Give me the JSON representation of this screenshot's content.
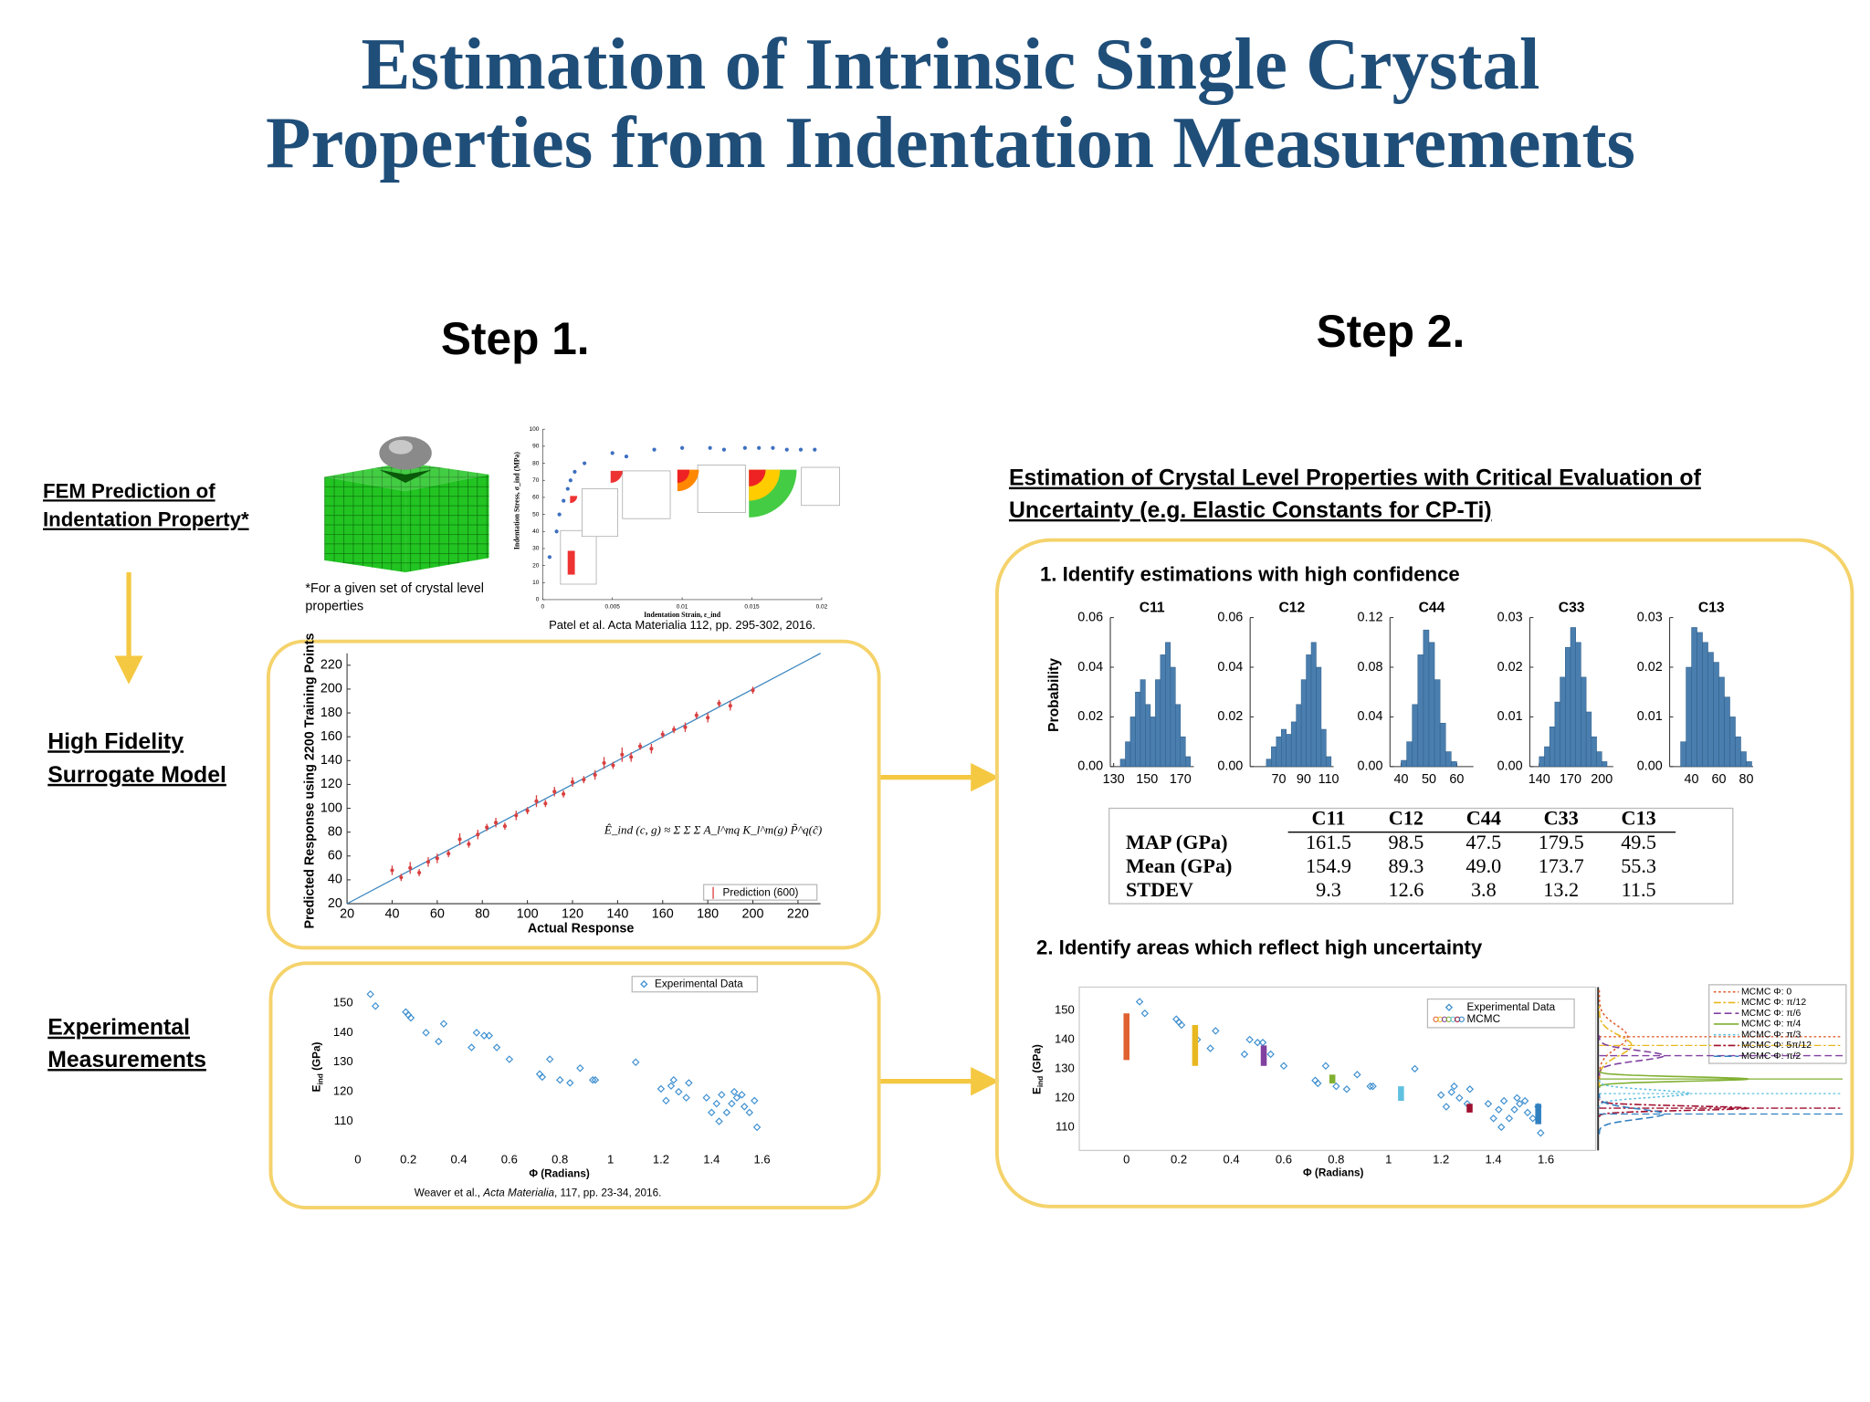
{
  "title": [
    "Estimation of Intrinsic Single Crystal",
    "Properties from Indentation Measurements"
  ],
  "step1": {
    "heading": "Step 1.",
    "fem_label": [
      "FEM  Prediction of",
      "Indentation Property*"
    ],
    "surrogate_label": [
      "High Fidelity",
      "Surrogate Model"
    ],
    "exp_label": [
      "Experimental",
      "Measurements"
    ],
    "fem_note": [
      "*For a given set of crystal level",
      "properties"
    ]
  },
  "step2": {
    "heading": "Step 2.",
    "subtitle": [
      "Estimation of Crystal Level Properties with Critical Evaluation of",
      "Uncertainty (e.g. Elastic Constants for CP-Ti)"
    ],
    "part1": "1. Identify estimations with high confidence",
    "part2": "2. Identify areas which reflect high uncertainty"
  },
  "charts": {
    "fem": {
      "type": "scatter",
      "x_label": "Indentation Strain, ε_ind",
      "y_label": "Indentation Stress, σ_ind (MPa)",
      "caption": "Patel et al. Acta Materialia 112, pp. 295-302, 2016.",
      "color": "#3d6fc0",
      "xlim": [
        0,
        0.02
      ],
      "xticks": [
        0,
        0.005,
        0.01,
        0.015,
        0.02
      ],
      "ylim": [
        0,
        100
      ],
      "yticks": [
        0,
        10,
        20,
        30,
        40,
        50,
        60,
        70,
        80,
        90,
        100
      ],
      "x": [
        0.0005,
        0.001,
        0.0012,
        0.0015,
        0.0018,
        0.002,
        0.0023,
        0.003,
        0.005,
        0.006,
        0.008,
        0.01,
        0.012,
        0.013,
        0.0145,
        0.0155,
        0.0165,
        0.0175,
        0.0185,
        0.0195
      ],
      "values": [
        25,
        40,
        50,
        58,
        65,
        70,
        75,
        80,
        86,
        84,
        88,
        89,
        89,
        88,
        89,
        89,
        89,
        88,
        88,
        88
      ]
    },
    "surrogate": {
      "type": "scatter",
      "x_label": "Actual Response",
      "y_label": "Predicted Response using 2200 Training Points",
      "equation": "Ê_ind (c, g) ≈ Σ Σ Σ A_l^mq K_l^m(g) P̃^q(c̃)",
      "legend": "Prediction (600)",
      "color": "#d94040",
      "line_color": "#3d87c0",
      "xlim": [
        20,
        230
      ],
      "xticks": [
        20,
        40,
        60,
        80,
        100,
        120,
        140,
        160,
        180,
        200,
        220
      ],
      "ylim": [
        20,
        230
      ],
      "yticks": [
        20,
        40,
        60,
        80,
        100,
        120,
        140,
        160,
        180,
        200,
        220
      ],
      "x": [
        40,
        44,
        48,
        52,
        56,
        60,
        65,
        70,
        74,
        78,
        82,
        86,
        90,
        95,
        100,
        104,
        108,
        112,
        116,
        120,
        125,
        130,
        134,
        138,
        142,
        146,
        150,
        155,
        160,
        165,
        170,
        175,
        180,
        185,
        190,
        200
      ],
      "values": [
        48,
        42,
        50,
        46,
        55,
        58,
        62,
        74,
        70,
        78,
        84,
        88,
        85,
        94,
        98,
        106,
        104,
        114,
        112,
        122,
        124,
        128,
        138,
        136,
        145,
        143,
        152,
        150,
        162,
        166,
        168,
        178,
        176,
        188,
        186,
        199
      ],
      "errors": [
        4,
        3,
        5,
        3,
        4,
        4,
        3,
        5,
        3,
        4,
        3,
        4,
        3,
        4,
        3,
        5,
        3,
        4,
        3,
        4,
        3,
        4,
        5,
        3,
        6,
        4,
        3,
        4,
        3,
        3,
        4,
        3,
        4,
        3,
        4,
        3
      ]
    },
    "experimental": {
      "type": "scatter",
      "legend": "Experimental Data",
      "x_label": "Φ (Radians)",
      "y_label": {
        "base": "E",
        "sub": "ind",
        "unit": " (GPa)"
      },
      "cite": {
        "pre": "Weaver et al., ",
        "journal": "Acta Materialia",
        "post": ", 117, pp. 23-34, 2016."
      },
      "color": "#3d8fd0",
      "xlim": [
        0,
        1.6
      ],
      "xticks": [
        0,
        0.2,
        0.4,
        0.6,
        0.8,
        1,
        1.2,
        1.4,
        1.6
      ],
      "ylim": [
        105,
        155
      ],
      "yticks": [
        110,
        120,
        130,
        140,
        150
      ],
      "x": [
        0.05,
        0.07,
        0.19,
        0.2,
        0.21,
        0.27,
        0.32,
        0.34,
        0.45,
        0.47,
        0.5,
        0.52,
        0.55,
        0.6,
        0.72,
        0.73,
        0.76,
        0.8,
        0.84,
        0.88,
        0.93,
        0.94,
        1.1,
        1.2,
        1.22,
        1.24,
        1.25,
        1.27,
        1.3,
        1.31,
        1.38,
        1.4,
        1.42,
        1.43,
        1.44,
        1.46,
        1.48,
        1.49,
        1.5,
        1.52,
        1.53,
        1.55,
        1.57,
        1.58
      ],
      "values": [
        153,
        149,
        147,
        146,
        145,
        140,
        137,
        143,
        135,
        140,
        139,
        139,
        135,
        131,
        126,
        125,
        131,
        124,
        123,
        128,
        124,
        124,
        130,
        121,
        117,
        122,
        124,
        120,
        118,
        123,
        118,
        113,
        116,
        110,
        119,
        113,
        116,
        120,
        118,
        119,
        115,
        113,
        117,
        108
      ]
    },
    "histograms": {
      "y_label": "Probability",
      "color": "#4a7eae",
      "panels": [
        {
          "type": "histogram",
          "title": "C11",
          "xlim": [
            128,
            178
          ],
          "xticks": [
            130,
            150,
            170
          ],
          "ylim": [
            0,
            0.06
          ],
          "yticks": [
            {
              "value": 0,
              "label": "0.00"
            },
            0.02,
            0.04,
            0.06
          ],
          "bins": [
            134,
            137,
            140,
            143,
            146,
            149,
            152,
            155,
            158,
            161,
            164,
            167,
            170,
            173,
            176
          ],
          "values": [
            0.003,
            0.01,
            0.02,
            0.03,
            0.035,
            0.025,
            0.02,
            0.035,
            0.045,
            0.05,
            0.04,
            0.025,
            0.012,
            0.004
          ]
        },
        {
          "type": "histogram",
          "title": "C12",
          "xlim": [
            47,
            114
          ],
          "xticks": [
            70,
            90,
            110
          ],
          "ylim": [
            0,
            0.06
          ],
          "yticks": [
            {
              "value": 0,
              "label": "0.00"
            },
            0.02,
            0.04,
            0.06
          ],
          "bins": [
            60,
            64,
            68,
            72,
            76,
            80,
            84,
            88,
            92,
            96,
            100,
            104,
            108,
            112
          ],
          "values": [
            0.003,
            0.008,
            0.012,
            0.015,
            0.013,
            0.018,
            0.025,
            0.035,
            0.045,
            0.05,
            0.04,
            0.015,
            0.004
          ]
        },
        {
          "type": "histogram",
          "title": "C44",
          "xlim": [
            36,
            66
          ],
          "xticks": [
            40,
            50,
            60
          ],
          "ylim": [
            0,
            0.12
          ],
          "yticks": [
            {
              "value": 0,
              "label": "0.00"
            },
            0.04,
            0.08,
            0.12
          ],
          "bins": [
            40,
            42,
            44,
            46,
            48,
            50,
            52,
            54,
            56,
            58,
            60
          ],
          "values": [
            0.005,
            0.02,
            0.05,
            0.09,
            0.11,
            0.1,
            0.07,
            0.035,
            0.012,
            0.004
          ]
        },
        {
          "type": "histogram",
          "title": "C33",
          "xlim": [
            131,
            211
          ],
          "xticks": [
            140,
            170,
            200
          ],
          "ylim": [
            0,
            0.03
          ],
          "yticks": [
            {
              "value": 0,
              "label": "0.00"
            },
            0.01,
            0.02,
            0.03
          ],
          "bins": [
            140,
            145,
            150,
            155,
            160,
            165,
            170,
            175,
            180,
            185,
            190,
            195,
            200,
            205
          ],
          "values": [
            0.002,
            0.004,
            0.008,
            0.013,
            0.018,
            0.024,
            0.028,
            0.025,
            0.018,
            0.011,
            0.006,
            0.003,
            0.001
          ]
        },
        {
          "type": "histogram",
          "title": "C13",
          "xlim": [
            24,
            85
          ],
          "xticks": [
            40,
            60,
            80
          ],
          "ylim": [
            0,
            0.03
          ],
          "yticks": [
            {
              "value": 0,
              "label": "0.00"
            },
            0.01,
            0.02,
            0.03
          ],
          "bins": [
            32,
            36,
            40,
            44,
            48,
            52,
            56,
            60,
            64,
            68,
            72,
            76,
            80,
            84
          ],
          "values": [
            0.005,
            0.02,
            0.028,
            0.027,
            0.025,
            0.023,
            0.021,
            0.018,
            0.014,
            0.01,
            0.006,
            0.003,
            0.001
          ]
        }
      ]
    },
    "table": {
      "columns": [
        "C11",
        "C12",
        "C44",
        "C33",
        "C13"
      ],
      "rows": [
        {
          "label": "MAP (GPa)",
          "values": [
            "161.5",
            "98.5",
            "47.5",
            "179.5",
            "49.5"
          ]
        },
        {
          "label": "Mean (GPa)",
          "values": [
            "154.9",
            "89.3",
            "49.0",
            "173.7",
            "55.3"
          ]
        },
        {
          "label": "STDEV",
          "values": [
            "9.3",
            "12.6",
            "3.8",
            "13.2",
            "11.5"
          ]
        }
      ]
    },
    "uncertainty": {
      "type": "scatter",
      "legend": [
        "Experimental Data",
        "MCMC"
      ],
      "x_label": "Φ (Radians)",
      "y_label": {
        "base": "E",
        "sub": "ind",
        "unit": " (GPa)"
      },
      "xlim": [
        -0.18,
        1.79
      ],
      "xticks": [
        0,
        0.2,
        0.4,
        0.6,
        0.8,
        1,
        1.2,
        1.4,
        1.6
      ],
      "ylim": [
        102,
        158
      ],
      "yticks": [
        110,
        120,
        130,
        140,
        150
      ],
      "mcmc": [
        {
          "name": "MCMC Φ: 0",
          "x": 0,
          "low": 133,
          "high": 149,
          "color": "#e06030",
          "dash": "2,2"
        },
        {
          "name": "MCMC Φ: π/12",
          "x": 0.2618,
          "low": 131,
          "high": 145,
          "color": "#e8b820",
          "dash": "6,2,2,2"
        },
        {
          "name": "MCMC Φ: π/6",
          "x": 0.5236,
          "low": 131,
          "high": 138,
          "color": "#8040a0",
          "dash": "6,3"
        },
        {
          "name": "MCMC Φ: π/4",
          "x": 0.7854,
          "low": 125,
          "high": 128,
          "color": "#80b030",
          "dash": ""
        },
        {
          "name": "MCMC Φ: π/3",
          "x": 1.0472,
          "low": 119,
          "high": 124,
          "color": "#60c0e0",
          "dash": "2,2"
        },
        {
          "name": "MCMC Φ: 5π/12",
          "x": 1.309,
          "low": 115,
          "high": 118,
          "color": "#a01030",
          "dash": "6,2,2,2"
        },
        {
          "name": "MCMC Φ: π/2",
          "x": 1.5708,
          "low": 111,
          "high": 118,
          "color": "#3080c0",
          "dash": "6,3"
        }
      ]
    }
  }
}
